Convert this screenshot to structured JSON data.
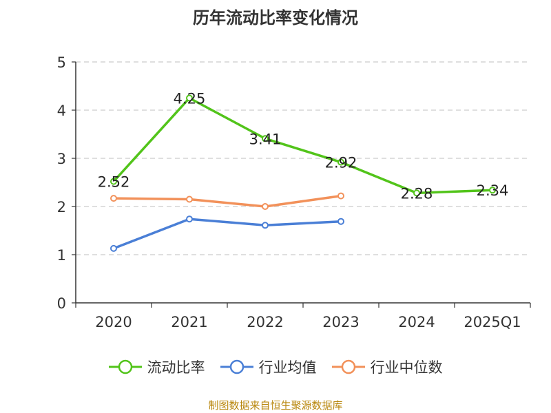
{
  "title": "历年流动比率变化情况",
  "source": "制图数据来自恒生聚源数据库",
  "colors": {
    "current_ratio": "#52c41a",
    "industry_mean": "#4a7fd6",
    "industry_median": "#f2915a",
    "grid": "#cccccc",
    "axis": "#333333",
    "source": "#b8860b"
  },
  "chart_data": {
    "type": "line",
    "title": "历年流动比率变化情况",
    "categories": [
      "2020",
      "2021",
      "2022",
      "2023",
      "2024",
      "2025Q1"
    ],
    "ylim": [
      0,
      5
    ],
    "yticks": [
      0,
      1,
      2,
      3,
      4,
      5
    ],
    "grid": "horizontal-dashed",
    "legend_position": "bottom",
    "series": [
      {
        "name": "流动比率",
        "color": "#52c41a",
        "values": [
          2.52,
          4.25,
          3.41,
          2.92,
          2.28,
          2.34
        ],
        "labels": [
          "2.52",
          "4.25",
          "3.41",
          "2.92",
          "2.28",
          "2.34"
        ]
      },
      {
        "name": "行业均值",
        "color": "#4a7fd6",
        "values": [
          1.13,
          1.74,
          1.61,
          1.69,
          null,
          null
        ]
      },
      {
        "name": "行业中位数",
        "color": "#f2915a",
        "values": [
          2.17,
          2.15,
          2.0,
          2.22,
          null,
          null
        ]
      }
    ]
  }
}
